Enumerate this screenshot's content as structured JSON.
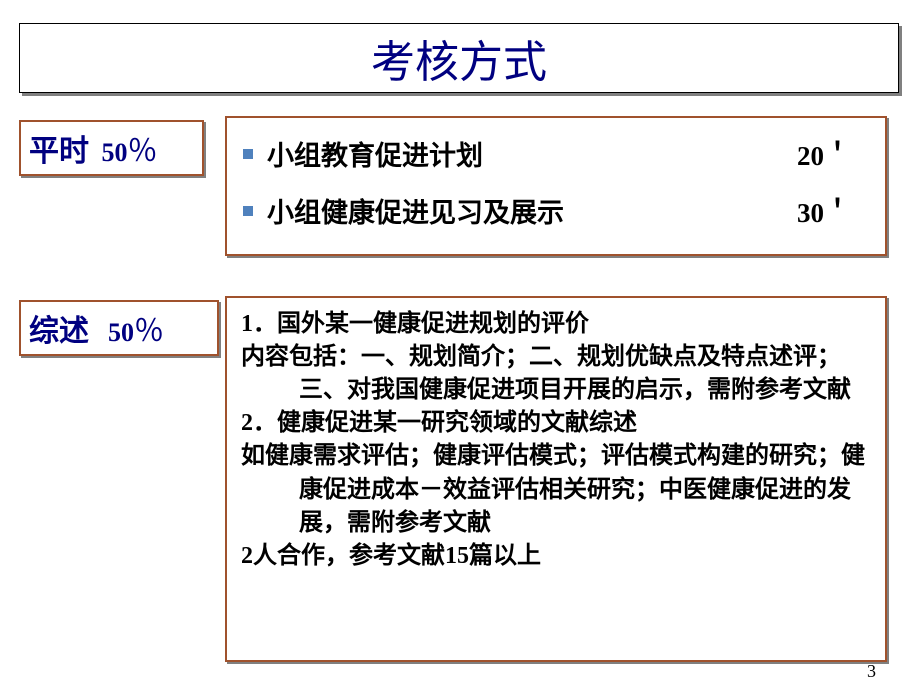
{
  "title": "考核方式",
  "labels": {
    "usual": {
      "cn": "平时",
      "num": "50",
      "pct": "％"
    },
    "review": {
      "cn": "综述",
      "num": "50",
      "pct": "％"
    }
  },
  "box1": {
    "items": [
      {
        "text": "小组教育促进计划",
        "score": "20＇"
      },
      {
        "text": "小组健康促进见习及展示",
        "score": "30＇"
      }
    ]
  },
  "box2": {
    "line1a": "1",
    "line1b": "．国外某一健康促进规划的评价",
    "line2": "内容包括：一、规划简介；二、规划优缺点及特点述评；三、对我国健康促进项目开展的启示，需附参考文献",
    "line3a": "2",
    "line3b": "．健康促进某一研究领域的文献综述",
    "line4": "如健康需求评估；健康评估模式；评估模式构建的研究；健康促进成本－效益评估相关研究；中医健康促进的发展，需附参考文献",
    "line5a": "2",
    "line5b": "人合作，参考文献",
    "line5c": "15",
    "line5d": "篇以上"
  },
  "pagenum": "3",
  "colors": {
    "title": "#000080",
    "border": "#a0522d",
    "bullet": "#4f81bd",
    "text": "#000000"
  }
}
